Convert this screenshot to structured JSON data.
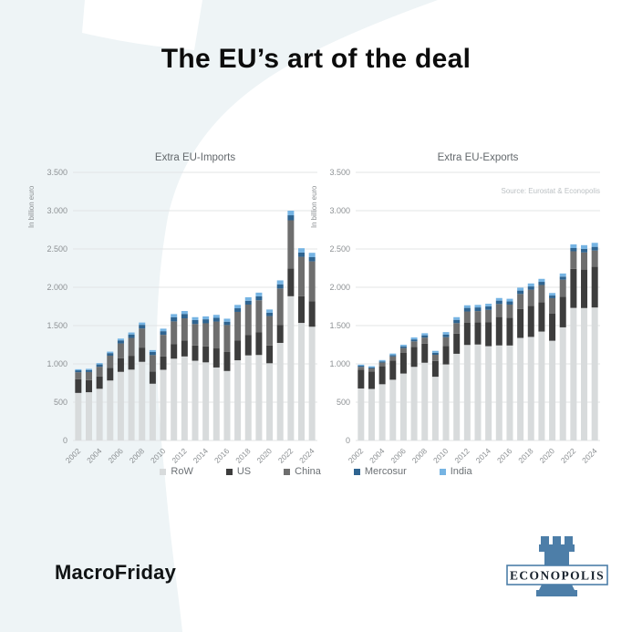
{
  "page": {
    "title": "The EU’s art of the deal",
    "brand": "MacroFriday",
    "logo_text": "ECONOPOLIS",
    "source": "Source: Eurostat & Econopolis"
  },
  "colors": {
    "row": "#d8dbdc",
    "us": "#3d3d3d",
    "china": "#6e6e6e",
    "mercosur": "#2f6490",
    "india": "#76b4e3",
    "grid": "#e3e5e6",
    "axis_text": "#8d9194",
    "chart_title": "#63686c",
    "source_text": "#bcc1c4",
    "logo_blue": "#4d7ea8",
    "bg_shape": "#eef4f6",
    "title_text": "#0c0c0c"
  },
  "legend": [
    {
      "label": "RoW",
      "color": "#d8dbdc"
    },
    {
      "label": "US",
      "color": "#3d3d3d"
    },
    {
      "label": "China",
      "color": "#6e6e6e"
    },
    {
      "label": "Mercosur",
      "color": "#2f6490"
    },
    {
      "label": "India",
      "color": "#76b4e3"
    }
  ],
  "chart_data": [
    {
      "type": "bar",
      "stacked": true,
      "title": "Extra EU-Imports",
      "ylabel": "In billion euro",
      "ylim": [
        0,
        3500
      ],
      "ytick_step": 500,
      "yticks": [
        "0",
        "500",
        "1.000",
        "1.500",
        "2.000",
        "2.500",
        "3.000",
        "3.500"
      ],
      "x": [
        2002,
        2003,
        2004,
        2005,
        2006,
        2007,
        2008,
        2009,
        2010,
        2011,
        2012,
        2013,
        2014,
        2015,
        2016,
        2017,
        2018,
        2019,
        2020,
        2021,
        2022,
        2023,
        2024
      ],
      "xtick_labels": [
        "2002",
        "2004",
        "2006",
        "2008",
        "2010",
        "2012",
        "2014",
        "2016",
        "2018",
        "2020",
        "2022",
        "2024"
      ],
      "series": [
        {
          "name": "RoW",
          "color": "#d8dbdc",
          "values": [
            621,
            630,
            675,
            783,
            896,
            925,
            1027,
            741,
            923,
            1068,
            1097,
            1041,
            1020,
            953,
            907,
            1047,
            1111,
            1116,
            1008,
            1274,
            1883,
            1535,
            1485
          ]
        },
        {
          "name": "US",
          "color": "#3d3d3d",
          "values": [
            180,
            158,
            159,
            163,
            176,
            181,
            186,
            159,
            173,
            192,
            206,
            199,
            208,
            249,
            248,
            257,
            268,
            295,
            232,
            236,
            364,
            347,
            334
          ]
        },
        {
          "name": "China",
          "color": "#6e6e6e",
          "values": [
            90,
            106,
            129,
            161,
            195,
            233,
            249,
            215,
            283,
            295,
            292,
            280,
            302,
            351,
            352,
            375,
            395,
            420,
            384,
            474,
            628,
            516,
            519
          ]
        },
        {
          "name": "Mercosur",
          "color": "#2f6490",
          "values": [
            25,
            26,
            30,
            34,
            40,
            45,
            48,
            40,
            48,
            55,
            57,
            53,
            52,
            48,
            44,
            47,
            50,
            51,
            45,
            55,
            65,
            56,
            55
          ]
        },
        {
          "name": "India",
          "color": "#76b4e3",
          "values": [
            14,
            15,
            17,
            19,
            23,
            26,
            30,
            25,
            33,
            40,
            38,
            37,
            38,
            39,
            39,
            44,
            46,
            48,
            41,
            51,
            60,
            56,
            57
          ]
        }
      ]
    },
    {
      "type": "bar",
      "stacked": true,
      "title": "Extra EU-Exports",
      "ylabel": "In billion euro",
      "ylim": [
        0,
        3500
      ],
      "ytick_step": 500,
      "yticks": [
        "0",
        "500",
        "1.000",
        "1.500",
        "2.000",
        "2.500",
        "3.000",
        "3.500"
      ],
      "x": [
        2002,
        2003,
        2004,
        2005,
        2006,
        2007,
        2008,
        2009,
        2010,
        2011,
        2012,
        2013,
        2014,
        2015,
        2016,
        2017,
        2018,
        2019,
        2020,
        2021,
        2022,
        2023,
        2024
      ],
      "xtick_labels": [
        "2002",
        "2004",
        "2006",
        "2008",
        "2010",
        "2012",
        "2014",
        "2016",
        "2018",
        "2020",
        "2022",
        "2024"
      ],
      "series": [
        {
          "name": "RoW",
          "color": "#d8dbdc",
          "values": [
            679,
            673,
            734,
            793,
            874,
            961,
            1015,
            832,
            993,
            1132,
            1247,
            1253,
            1231,
            1241,
            1240,
            1339,
            1352,
            1422,
            1302,
            1477,
            1731,
            1729,
            1736
          ]
        },
        {
          "name": "US",
          "color": "#3d3d3d",
          "values": [
            247,
            227,
            235,
            252,
            269,
            261,
            250,
            205,
            242,
            264,
            293,
            288,
            311,
            371,
            364,
            376,
            407,
            384,
            353,
            399,
            509,
            502,
            531
          ]
        },
        {
          "name": "China",
          "color": "#6e6e6e",
          "values": [
            35,
            41,
            48,
            52,
            64,
            72,
            78,
            82,
            113,
            136,
            144,
            148,
            164,
            170,
            170,
            198,
            210,
            224,
            203,
            223,
            230,
            224,
            213
          ]
        },
        {
          "name": "Mercosur",
          "color": "#2f6490",
          "values": [
            15,
            14,
            16,
            19,
            22,
            26,
            30,
            26,
            36,
            43,
            47,
            48,
            46,
            44,
            41,
            44,
            42,
            41,
            34,
            40,
            42,
            46,
            48
          ]
        },
        {
          "name": "India",
          "color": "#76b4e3",
          "values": [
            14,
            15,
            17,
            19,
            21,
            25,
            27,
            25,
            31,
            35,
            34,
            33,
            33,
            34,
            35,
            38,
            39,
            39,
            33,
            41,
            48,
            49,
            52
          ]
        }
      ]
    }
  ]
}
